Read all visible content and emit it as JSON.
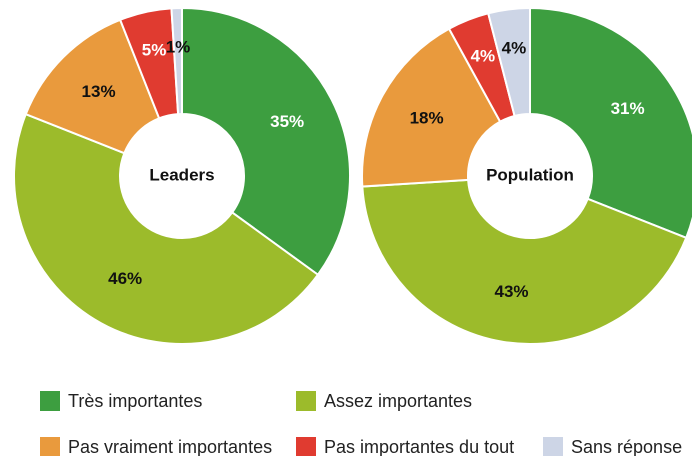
{
  "chart_data": [
    {
      "type": "pie",
      "title": "Leaders",
      "categories": [
        "Très importantes",
        "Assez importantes",
        "Pas vraiment importantes",
        "Pas importantes du tout",
        "Sans réponse"
      ],
      "values": [
        35,
        46,
        13,
        5,
        1
      ],
      "value_labels": [
        "35%",
        "46%",
        "13%",
        "5%",
        "1%"
      ],
      "colors": [
        "#3d9e40",
        "#9cbb2b",
        "#e99a3d",
        "#e03b30",
        "#cdd5e6"
      ]
    },
    {
      "type": "pie",
      "title": "Population",
      "categories": [
        "Très importantes",
        "Assez importantes",
        "Pas vraiment importantes",
        "Pas importantes du tout",
        "Sans réponse"
      ],
      "values": [
        31,
        43,
        18,
        4,
        4
      ],
      "value_labels": [
        "31%",
        "43%",
        "18%",
        "4%",
        "4%"
      ],
      "colors": [
        "#3d9e40",
        "#9cbb2b",
        "#e99a3d",
        "#e03b30",
        "#cdd5e6"
      ]
    }
  ]
}
